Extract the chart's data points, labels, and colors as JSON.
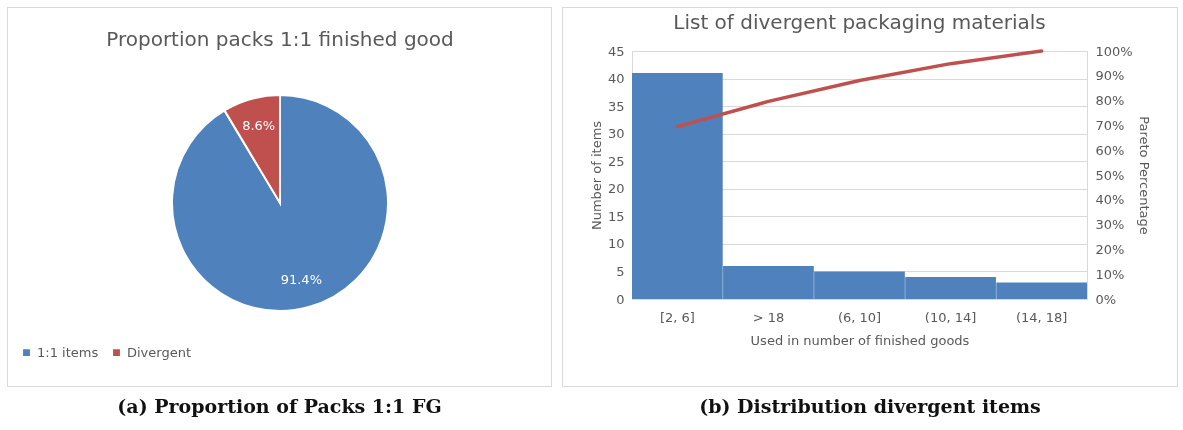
{
  "chart_data": [
    {
      "type": "pie",
      "title": "Proportion packs 1:1 finished good",
      "categories": [
        "1:1 items",
        "Divergent"
      ],
      "values": [
        91.4,
        8.6
      ],
      "colors": [
        "#4f81bd",
        "#c0504d"
      ],
      "value_labels": [
        "91.4%",
        "8.6%"
      ],
      "legend": "bottom",
      "annotations": [
        "(a) Proportion of Packs 1:1 FG"
      ]
    },
    {
      "type": "bar",
      "title": "List of divergent packaging materials",
      "categories": [
        "[2, 6]",
        "> 18",
        "(6, 10]",
        "(10, 14]",
        "(14, 18]"
      ],
      "series": [
        {
          "type": "bar",
          "color": "#4f81bd",
          "values": [
            41,
            6,
            5,
            4,
            3
          ]
        },
        {
          "type": "line",
          "axis": "y2",
          "color": "#c0504d",
          "values": [
            69.5,
            79.7,
            88.1,
            94.9,
            100
          ]
        }
      ],
      "ylim": [
        0,
        45
      ],
      "yticks": [
        0,
        5,
        10,
        15,
        20,
        25,
        30,
        35,
        40,
        45
      ],
      "y2lim": [
        0,
        100
      ],
      "y2ticks": [
        {
          "value": 0,
          "label": "0%"
        },
        {
          "value": 10,
          "label": "10%"
        },
        {
          "value": 20,
          "label": "20%"
        },
        {
          "value": 30,
          "label": "30%"
        },
        {
          "value": 40,
          "label": "40%"
        },
        {
          "value": 50,
          "label": "50%"
        },
        {
          "value": 60,
          "label": "60%"
        },
        {
          "value": 70,
          "label": "70%"
        },
        {
          "value": 80,
          "label": "80%"
        },
        {
          "value": 90,
          "label": "90%"
        },
        {
          "value": 100,
          "label": "100%"
        }
      ],
      "xlabel": "Used in number of finished goods",
      "ylabel": "Number of items",
      "y2label": "Pareto Percentage",
      "grid": "y",
      "annotations": [
        "(b) Distribution divergent items"
      ]
    }
  ]
}
